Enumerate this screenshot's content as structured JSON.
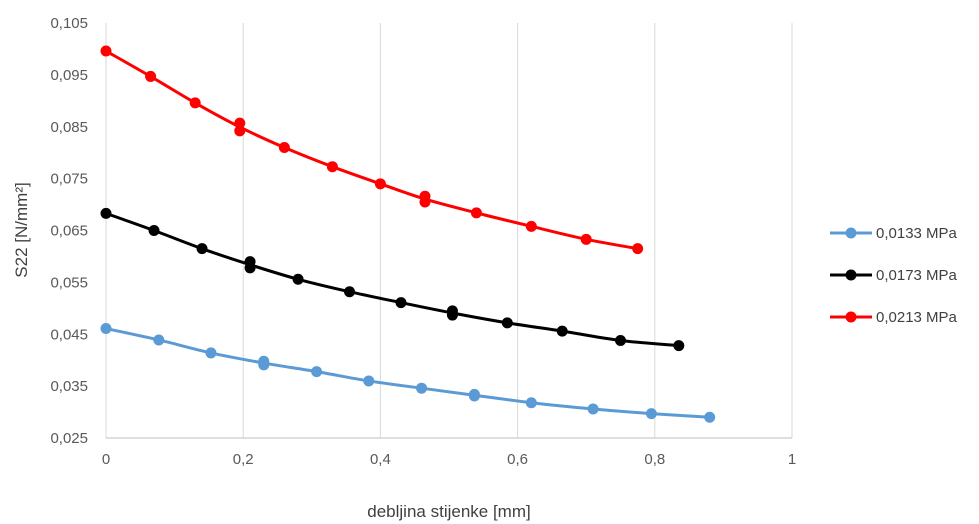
{
  "chart_data": {
    "type": "scatter",
    "title": "",
    "xlabel": "debljina stijenke [mm]",
    "ylabel": "S22 [N/mm²]",
    "xlim": [
      0,
      1
    ],
    "ylim": [
      0.025,
      0.105
    ],
    "x_ticks": [
      "0",
      "0,2",
      "0,4",
      "0,6",
      "0,8",
      "1"
    ],
    "y_ticks": [
      "0,025",
      "0,035",
      "0,045",
      "0,055",
      "0,065",
      "0,075",
      "0,085",
      "0,095",
      "0,105"
    ],
    "grid": "vertical",
    "legend_position": "right",
    "series": [
      {
        "name": "0,0133 MPa",
        "color": "#5B9BD5",
        "x": [
          0,
          0.077,
          0.153,
          0.23,
          0.23,
          0.307,
          0.383,
          0.46,
          0.537,
          0.537,
          0.62,
          0.71,
          0.795,
          0.88
        ],
        "y": [
          0.0461,
          0.0439,
          0.0414,
          0.0398,
          0.0391,
          0.0378,
          0.036,
          0.0346,
          0.0334,
          0.0331,
          0.0318,
          0.0306,
          0.0297,
          0.029
        ]
      },
      {
        "name": "0,0173 MPa",
        "color": "#000000",
        "x": [
          0,
          0.07,
          0.14,
          0.21,
          0.21,
          0.28,
          0.355,
          0.43,
          0.505,
          0.505,
          0.585,
          0.665,
          0.75,
          0.835
        ],
        "y": [
          0.0683,
          0.065,
          0.0615,
          0.059,
          0.0578,
          0.0556,
          0.0532,
          0.0511,
          0.0495,
          0.0487,
          0.0472,
          0.0456,
          0.0438,
          0.0428
        ]
      },
      {
        "name": "0,0213 MPa",
        "color": "#FF0000",
        "x": [
          0,
          0.065,
          0.13,
          0.195,
          0.195,
          0.26,
          0.33,
          0.4,
          0.465,
          0.465,
          0.54,
          0.62,
          0.7,
          0.775
        ],
        "y": [
          0.0996,
          0.0947,
          0.0896,
          0.0857,
          0.0842,
          0.081,
          0.0773,
          0.074,
          0.0716,
          0.0705,
          0.0684,
          0.0658,
          0.0633,
          0.0615
        ]
      }
    ]
  }
}
